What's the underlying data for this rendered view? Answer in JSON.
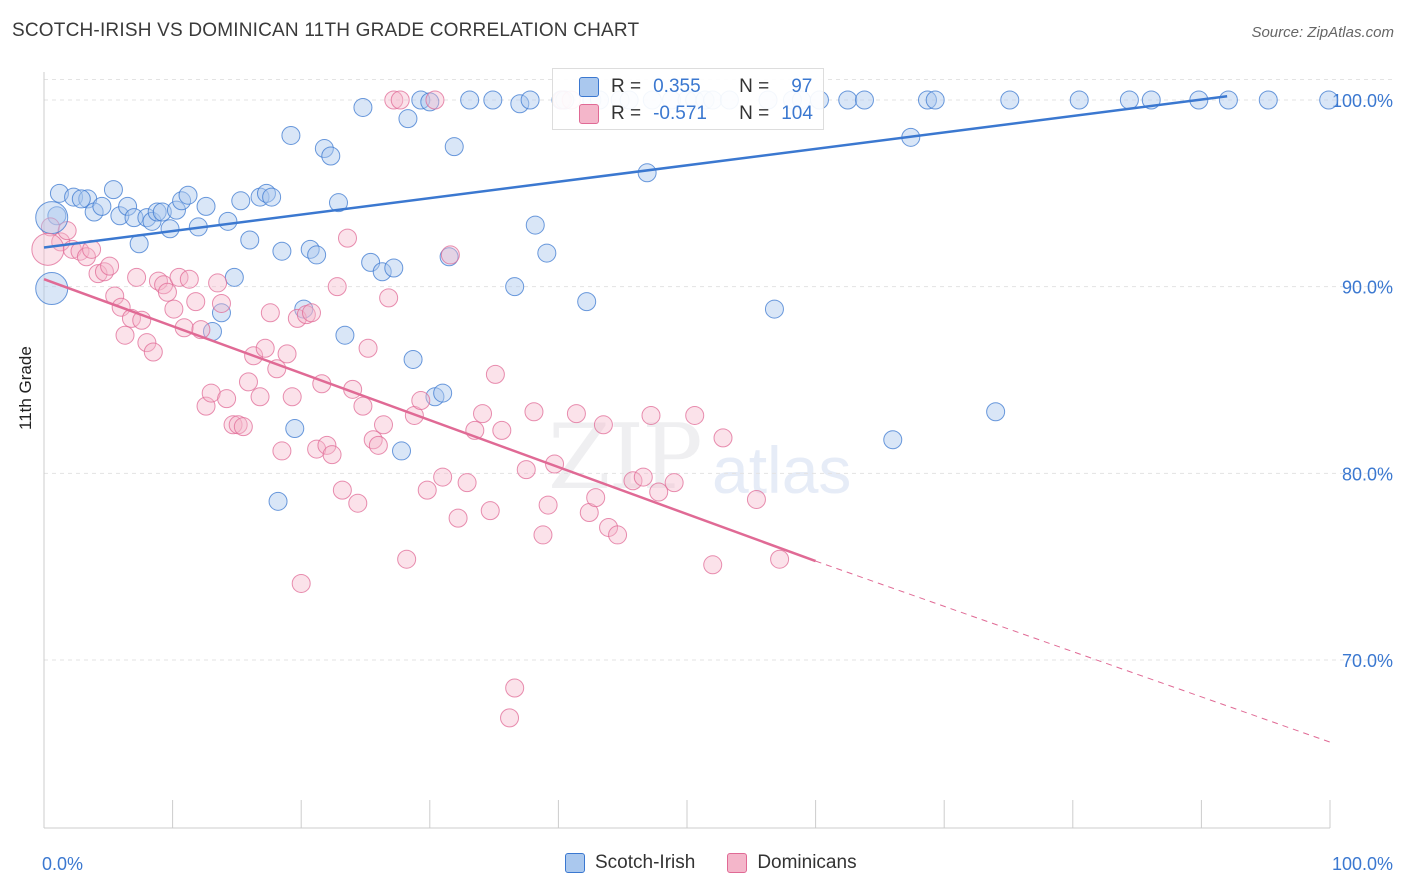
{
  "title": "SCOTCH-IRISH VS DOMINICAN 11TH GRADE CORRELATION CHART",
  "source": "Source: ZipAtlas.com",
  "watermark": {
    "zip": "ZIP",
    "atlas": "atlas"
  },
  "colors": {
    "blue": "#3b78d0",
    "blue_fill": "#aac8ee",
    "pink": "#e06a95",
    "pink_fill": "#f4b6ca",
    "grid": "#e3e3e3"
  },
  "legend": {
    "series1": {
      "r_label": "R =",
      "r_value": "0.355",
      "n_label": "N =",
      "n_value": "97"
    },
    "series2": {
      "r_label": "R =",
      "r_value": "-0.571",
      "n_label": "N =",
      "n_value": "104"
    }
  },
  "bottom_legend": {
    "series1": "Scotch-Irish",
    "series2": "Dominicans"
  },
  "chart_data": {
    "type": "scatter",
    "ylabel": "11th Grade",
    "xlim": [
      0,
      100
    ],
    "ylim": [
      61,
      101.5
    ],
    "x_tick_labels": [
      {
        "x": 0,
        "label": "0.0%"
      },
      {
        "x": 100,
        "label": "100.0%"
      }
    ],
    "y_tick_labels": [
      {
        "y": 100,
        "label": "100.0%"
      },
      {
        "y": 90,
        "label": "90.0%"
      },
      {
        "y": 80,
        "label": "80.0%"
      },
      {
        "y": 70,
        "label": "70.0%"
      }
    ],
    "series": [
      {
        "name": "Scotch-Irish",
        "trend": {
          "x": [
            0,
            92
          ],
          "y": [
            92.1,
            100.2
          ]
        },
        "points": [
          [
            1.2,
            95
          ],
          [
            2.3,
            94.8
          ],
          [
            3.4,
            94.7
          ],
          [
            3.9,
            94.0
          ],
          [
            4.5,
            94.3
          ],
          [
            5.4,
            95.2
          ],
          [
            5.9,
            93.8
          ],
          [
            6.5,
            94.3
          ],
          [
            7.0,
            93.7
          ],
          [
            7.4,
            92.3
          ],
          [
            8.0,
            93.7
          ],
          [
            8.4,
            93.5
          ],
          [
            8.8,
            94.0
          ],
          [
            9.2,
            94.0
          ],
          [
            9.8,
            93.1
          ],
          [
            10.3,
            94.1
          ],
          [
            10.7,
            94.6
          ],
          [
            11.2,
            94.9
          ],
          [
            12.0,
            93.2
          ],
          [
            12.6,
            94.3
          ],
          [
            13.1,
            87.6
          ],
          [
            13.8,
            88.6
          ],
          [
            14.3,
            93.5
          ],
          [
            14.8,
            90.5
          ],
          [
            15.3,
            94.6
          ],
          [
            16.0,
            92.5
          ],
          [
            16.8,
            94.8
          ],
          [
            17.3,
            95.0
          ],
          [
            17.7,
            94.8
          ],
          [
            18.2,
            78.5
          ],
          [
            18.5,
            91.9
          ],
          [
            19.2,
            98.1
          ],
          [
            19.5,
            82.4
          ],
          [
            20.2,
            88.8
          ],
          [
            20.7,
            92.0
          ],
          [
            21.2,
            91.7
          ],
          [
            21.8,
            97.4
          ],
          [
            22.3,
            97.0
          ],
          [
            22.9,
            94.5
          ],
          [
            23.4,
            87.4
          ],
          [
            24.8,
            99.6
          ],
          [
            25.4,
            91.3
          ],
          [
            26.3,
            90.8
          ],
          [
            27.2,
            91.0
          ],
          [
            27.8,
            81.2
          ],
          [
            28.3,
            99.0
          ],
          [
            28.7,
            86.1
          ],
          [
            29.3,
            100
          ],
          [
            30.0,
            99.9
          ],
          [
            30.4,
            84.1
          ],
          [
            31.0,
            84.3
          ],
          [
            31.5,
            91.6
          ],
          [
            31.9,
            97.5
          ],
          [
            33.1,
            100
          ],
          [
            34.9,
            100
          ],
          [
            36.6,
            90.0
          ],
          [
            37.0,
            99.8
          ],
          [
            37.8,
            100
          ],
          [
            38.2,
            93.3
          ],
          [
            39.1,
            91.8
          ],
          [
            40.2,
            100
          ],
          [
            40.5,
            100
          ],
          [
            42.2,
            89.2
          ],
          [
            42.6,
            100
          ],
          [
            43.2,
            100
          ],
          [
            44.8,
            100
          ],
          [
            45.5,
            100
          ],
          [
            46.9,
            96.1
          ],
          [
            47.3,
            100
          ],
          [
            48.8,
            100
          ],
          [
            50.0,
            100
          ],
          [
            50.6,
            100
          ],
          [
            51.4,
            100
          ],
          [
            52.0,
            100
          ],
          [
            53.3,
            100
          ],
          [
            56.3,
            100
          ],
          [
            56.8,
            88.8
          ],
          [
            58.2,
            100
          ],
          [
            58.9,
            100
          ],
          [
            60.3,
            100
          ],
          [
            62.5,
            100
          ],
          [
            63.8,
            100
          ],
          [
            66.0,
            81.8
          ],
          [
            67.4,
            98.0
          ],
          [
            68.7,
            100
          ],
          [
            69.3,
            100
          ],
          [
            74.0,
            83.3
          ],
          [
            75.1,
            100
          ],
          [
            80.5,
            100
          ],
          [
            84.4,
            100
          ],
          [
            86.1,
            100
          ],
          [
            89.8,
            100
          ],
          [
            92.1,
            100
          ],
          [
            95.2,
            100
          ],
          [
            1.0,
            93.8
          ],
          [
            2.9,
            94.7
          ],
          [
            99.9,
            100
          ]
        ]
      },
      {
        "name": "Dominicans",
        "trend": {
          "x": [
            0,
            60
          ],
          "y": [
            90.4,
            75.3
          ]
        },
        "trend_dashed": {
          "x": [
            60,
            100
          ],
          "y": [
            75.3,
            65.6
          ]
        },
        "points": [
          [
            0.5,
            93.2
          ],
          [
            1.3,
            92.4
          ],
          [
            1.8,
            93.0
          ],
          [
            2.2,
            92.0
          ],
          [
            2.8,
            91.9
          ],
          [
            3.3,
            91.6
          ],
          [
            3.7,
            92.0
          ],
          [
            4.2,
            90.7
          ],
          [
            4.7,
            90.8
          ],
          [
            5.1,
            91.1
          ],
          [
            5.5,
            89.5
          ],
          [
            6.0,
            88.9
          ],
          [
            6.3,
            87.4
          ],
          [
            6.8,
            88.3
          ],
          [
            7.2,
            90.5
          ],
          [
            7.6,
            88.2
          ],
          [
            8.0,
            87.0
          ],
          [
            8.5,
            86.5
          ],
          [
            8.9,
            90.3
          ],
          [
            9.3,
            90.1
          ],
          [
            9.6,
            89.7
          ],
          [
            10.1,
            88.8
          ],
          [
            10.5,
            90.5
          ],
          [
            10.9,
            87.8
          ],
          [
            11.3,
            90.4
          ],
          [
            11.8,
            89.2
          ],
          [
            12.2,
            87.7
          ],
          [
            12.6,
            83.6
          ],
          [
            13.0,
            84.3
          ],
          [
            13.5,
            90.2
          ],
          [
            13.8,
            89.1
          ],
          [
            14.2,
            84.0
          ],
          [
            14.7,
            82.6
          ],
          [
            15.1,
            82.6
          ],
          [
            15.5,
            82.5
          ],
          [
            15.9,
            84.9
          ],
          [
            16.3,
            86.3
          ],
          [
            16.8,
            84.1
          ],
          [
            17.2,
            86.7
          ],
          [
            17.6,
            88.6
          ],
          [
            18.1,
            85.6
          ],
          [
            18.5,
            81.2
          ],
          [
            18.9,
            86.4
          ],
          [
            19.3,
            84.1
          ],
          [
            19.7,
            88.3
          ],
          [
            20.0,
            74.1
          ],
          [
            20.4,
            88.5
          ],
          [
            20.8,
            88.6
          ],
          [
            21.2,
            81.3
          ],
          [
            21.6,
            84.8
          ],
          [
            22.0,
            81.5
          ],
          [
            22.4,
            81.0
          ],
          [
            22.8,
            90.0
          ],
          [
            23.2,
            79.1
          ],
          [
            23.6,
            92.6
          ],
          [
            24.0,
            84.5
          ],
          [
            24.4,
            78.4
          ],
          [
            24.8,
            83.6
          ],
          [
            25.2,
            86.7
          ],
          [
            25.6,
            81.8
          ],
          [
            26.0,
            81.5
          ],
          [
            26.4,
            82.6
          ],
          [
            26.8,
            89.4
          ],
          [
            27.2,
            100
          ],
          [
            27.7,
            100
          ],
          [
            28.2,
            75.4
          ],
          [
            28.8,
            83.1
          ],
          [
            29.3,
            83.9
          ],
          [
            29.8,
            79.1
          ],
          [
            30.4,
            100
          ],
          [
            31.0,
            79.8
          ],
          [
            31.6,
            91.7
          ],
          [
            32.2,
            77.6
          ],
          [
            32.9,
            79.5
          ],
          [
            33.5,
            82.3
          ],
          [
            34.1,
            83.2
          ],
          [
            34.7,
            78.0
          ],
          [
            35.1,
            85.3
          ],
          [
            35.6,
            82.3
          ],
          [
            36.2,
            66.9
          ],
          [
            36.6,
            68.5
          ],
          [
            37.5,
            80.2
          ],
          [
            38.1,
            83.3
          ],
          [
            38.8,
            76.7
          ],
          [
            39.2,
            78.3
          ],
          [
            39.7,
            80.5
          ],
          [
            40.3,
            100
          ],
          [
            41.0,
            100
          ],
          [
            41.4,
            83.2
          ],
          [
            42.4,
            77.9
          ],
          [
            42.9,
            78.7
          ],
          [
            43.5,
            82.6
          ],
          [
            43.9,
            77.1
          ],
          [
            44.6,
            76.7
          ],
          [
            45.8,
            79.6
          ],
          [
            46.6,
            79.8
          ],
          [
            47.2,
            83.1
          ],
          [
            47.8,
            79.0
          ],
          [
            49.0,
            79.5
          ],
          [
            50.6,
            83.1
          ],
          [
            52.0,
            75.1
          ],
          [
            52.8,
            81.9
          ],
          [
            55.4,
            78.6
          ],
          [
            57.2,
            75.4
          ]
        ]
      }
    ]
  }
}
